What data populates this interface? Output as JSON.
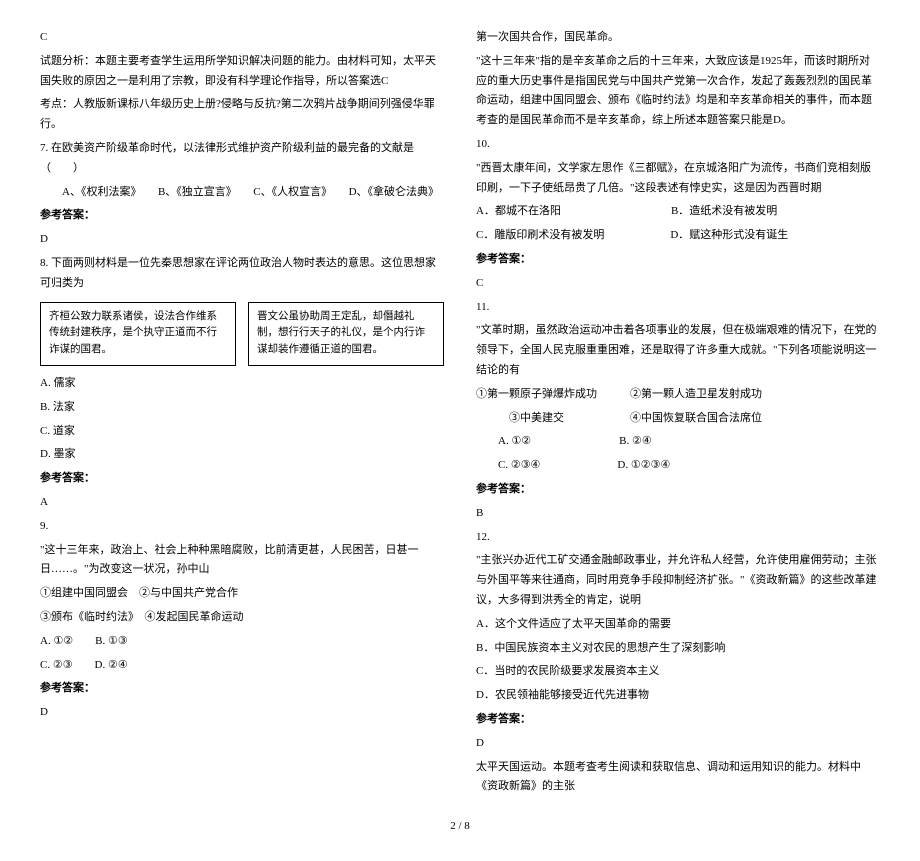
{
  "left": {
    "answerC": "C",
    "analysis": "试题分析：本题主要考查学生运用所学知识解决问题的能力。由材料可知，太平天国失败的原因之一是利用了宗教，即没有科学理论作指导，所以答案选C",
    "kaodian": "考点：人教版新课标八年级历史上册?侵略与反抗?第二次鸦片战争期间列强侵华罪行。",
    "q7": "7. 在欧美资产阶级革命时代，以法律形式维护资产阶级利益的最完备的文献是（　　）",
    "q7opts": "A、《权利法案》　　B、《独立宣言》　　C、《人权宣言》　　D、《拿破仑法典》",
    "refAns": "参考答案：",
    "q7ans": "D",
    "q8": "8. 下面两则材料是一位先秦思想家在评论两位政治人物时表达的意思。这位思想家可归类为",
    "box1": "齐桓公致力联系诸侯，设法合作维系传统封建秩序，是个执守正道而不行诈谋的国君。",
    "box2": "晋文公虽协助周王定乱，却僭越礼制，想行行天子的礼仪，是个内行诈谋却装作遵循正道的国君。",
    "q8a": "A. 儒家",
    "q8b": "B. 法家",
    "q8c": "C. 道家",
    "q8d": "D. 墨家",
    "q8ans": "A",
    "q9intro": "9.",
    "q9text": "\"这十三年来，政治上、社会上种种黑暗腐败，比前清更甚，人民困苦，日甚一日……。\"为改变这一状况，孙中山",
    "q9opt1": "①组建中国同盟会　②与中国共产党合作",
    "q9opt2": "③颁布《临时约法》　④发起国民革命运动",
    "q9a": "A. ①②　　B. ①③",
    "q9b": "C. ②③　　D. ②④",
    "q9ans": "D"
  },
  "right": {
    "line1": "第一次国共合作，国民革命。",
    "line2": "\"这十三年来\"指的是辛亥革命之后的十三年来，大致应该是1925年，而该时期所对应的重大历史事件是指国民党与中国共产党第一次合作，发起了轰轰烈烈的国民革命运动，组建中国同盟会、颁布《临时约法》均是和辛亥革命相关的事件，而本题考查的是国民革命而不是辛亥革命，综上所述本题答案只能是D。",
    "q10intro": "10.",
    "q10text": "\"西晋太康年间，文学家左思作《三都赋》，在京城洛阳广为流传，书商们竞相刻版印刷，一下子使纸昂贵了几倍。\"这段表述有悖史实，这是因为西晋时期",
    "q10a": "A．都城不在洛阳　　　　　　　　　　B．造纸术没有被发明",
    "q10b": "C．雕版印刷术没有被发明　　　　　　D．赋这种形式没有诞生",
    "q10ans": "C",
    "q11intro": "11.",
    "q11text": "\"文革时期，虽然政治运动冲击着各项事业的发展，但在极端艰难的情况下，在党的领导下，全国人民克服重重困难，还是取得了许多重大成就。\"下列各项能说明这一结论的有",
    "q11opt1": "①第一颗原子弹爆炸成功　　　②第一颗人造卫星发射成功",
    "q11opt2": "　　　③中美建交　　　　　　④中国恢复联合国合法席位",
    "q11a": "A. ①②　　　　　　　　B. ②④",
    "q11b": "C. ②③④　　　　　　　D. ①②③④",
    "q11ans": "B",
    "q12intro": "12.",
    "q12text": "\"主张兴办近代工矿交通金融邮政事业，并允许私人经营，允许使用雇佣劳动；主张与外国平等来往通商，同时用竞争手段抑制经济扩张。\"《资政新篇》的这些改革建议，大多得到洪秀全的肯定，说明",
    "q12a": "A．这个文件适应了太平天国革命的需要",
    "q12b": "B．中国民族资本主义对农民的思想产生了深刻影响",
    "q12c": "C．当时的农民阶级要求发展资本主义",
    "q12d": "D．农民领袖能够接受近代先进事物",
    "q12ans": "D",
    "tail": "太平天国运动。本题考查考生阅读和获取信息、调动和运用知识的能力。材料中《资政新篇》的主张"
  },
  "pageNum": "2 / 8"
}
